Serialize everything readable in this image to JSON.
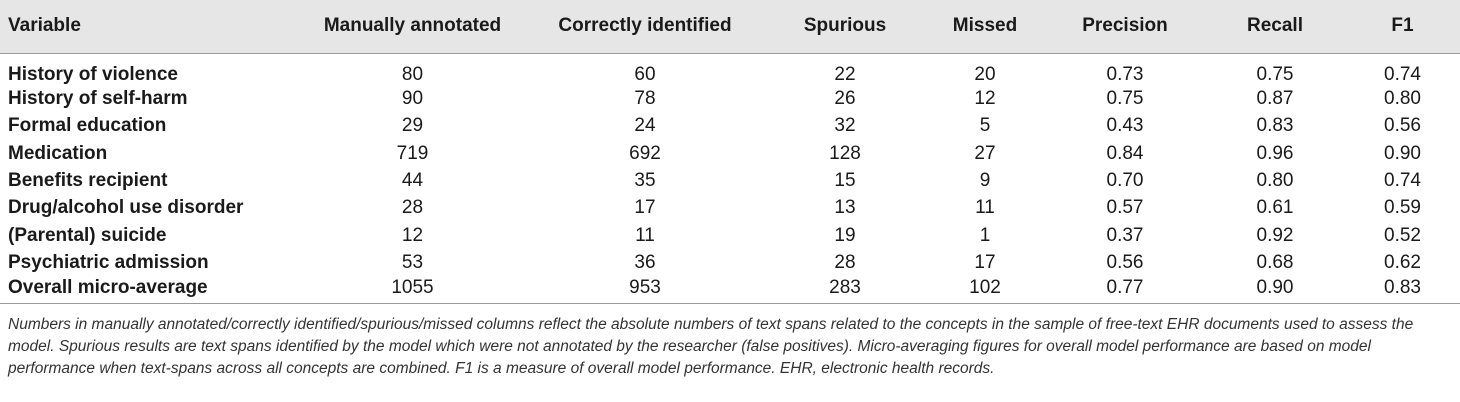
{
  "table": {
    "headers": [
      "Variable",
      "Manually annotated",
      "Correctly identified",
      "Spurious",
      "Missed",
      "Precision",
      "Recall",
      "F1"
    ],
    "rows": [
      [
        "History of violence",
        "80",
        "60",
        "22",
        "20",
        "0.73",
        "0.75",
        "0.74"
      ],
      [
        "History of self-harm",
        "90",
        "78",
        "26",
        "12",
        "0.75",
        "0.87",
        "0.80"
      ],
      [
        "Formal education",
        "29",
        "24",
        "32",
        "5",
        "0.43",
        "0.83",
        "0.56"
      ],
      [
        "Medication",
        "719",
        "692",
        "128",
        "27",
        "0.84",
        "0.96",
        "0.90"
      ],
      [
        "Benefits recipient",
        "44",
        "35",
        "15",
        "9",
        "0.70",
        "0.80",
        "0.74"
      ],
      [
        "Drug/alcohol use disorder",
        "28",
        "17",
        "13",
        "11",
        "0.57",
        "0.61",
        "0.59"
      ],
      [
        "(Parental) suicide",
        "12",
        "11",
        "19",
        "1",
        "0.37",
        "0.92",
        "0.52"
      ],
      [
        "Psychiatric admission",
        "53",
        "36",
        "28",
        "17",
        "0.56",
        "0.68",
        "0.62"
      ],
      [
        "Overall micro-average",
        "1055",
        "953",
        "283",
        "102",
        "0.77",
        "0.90",
        "0.83"
      ]
    ]
  },
  "footnote": "Numbers in manually annotated/correctly identified/spurious/missed columns reflect the absolute numbers of text spans related to the concepts in the sample of free-text EHR documents used to assess the model. Spurious results are text spans identified by the model which were not annotated by the researcher (false positives). Micro-averaging figures for overall model performance are based on model performance when text-spans across all concepts are combined. F1 is a measure of overall model performance. EHR, electronic health records."
}
